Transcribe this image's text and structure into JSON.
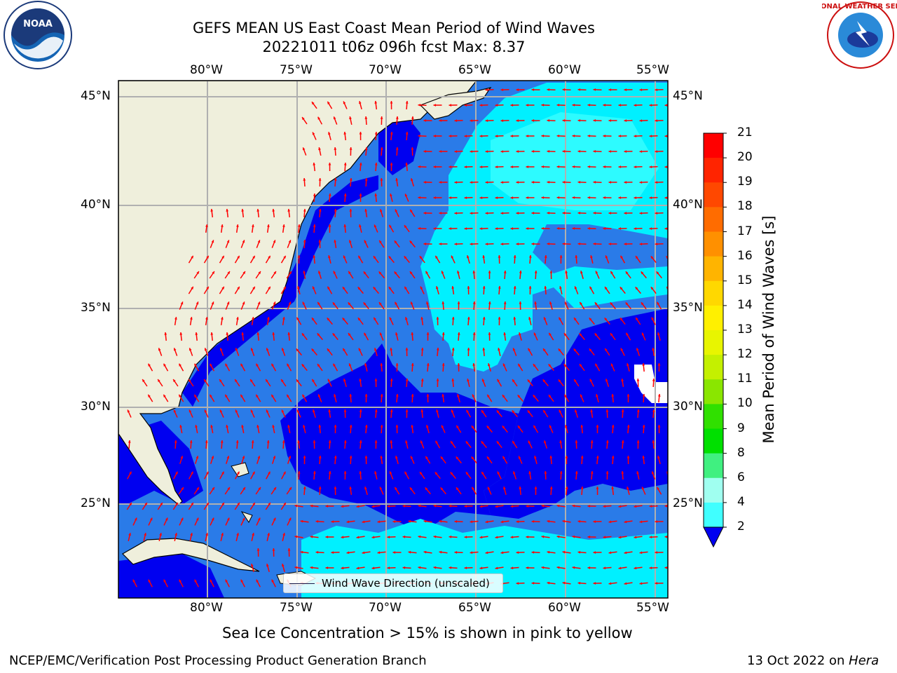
{
  "title": {
    "line1": "GEFS MEAN US East Coast Mean Period of Wind Waves",
    "line2": "20221011 t06z 096h fcst   Max: 8.37"
  },
  "map": {
    "lon_labels": [
      "80°W",
      "75°W",
      "70°W",
      "65°W",
      "60°W",
      "55°W"
    ],
    "lat_labels": [
      "45°N",
      "40°N",
      "35°N",
      "30°N",
      "25°N"
    ],
    "legend_label": "Wind Wave Direction (unscaled)",
    "arrow_color": "#ff0000",
    "land_color": "#efefdc"
  },
  "colorbar": {
    "label": "Mean Period of Wind Waves [s]",
    "ticks": [
      "21",
      "20",
      "19",
      "18",
      "17",
      "16",
      "15",
      "14",
      "13",
      "12",
      "11",
      "10",
      "9",
      "8",
      "6",
      "4",
      "2"
    ],
    "colors": [
      "#ff0000",
      "#ff2400",
      "#ff4800",
      "#ff6c00",
      "#ff9000",
      "#ffb400",
      "#ffd800",
      "#fff000",
      "#e8f500",
      "#c4f000",
      "#8ae600",
      "#30e000",
      "#00e000",
      "#40f080",
      "#a0fff0",
      "#40ffff",
      "#00e8ff",
      "#0080ff"
    ]
  },
  "subtitle": "Sea Ice Concentration > 15% is shown in pink to yellow",
  "footer": {
    "left": "NCEP/EMC/Verification Post Processing Product Generation Branch",
    "date": "13 Oct 2022 on ",
    "machine": "Hera"
  },
  "logos": {
    "noaa": "NOAA",
    "nws": "NATIONAL WEATHER SERVICE"
  }
}
